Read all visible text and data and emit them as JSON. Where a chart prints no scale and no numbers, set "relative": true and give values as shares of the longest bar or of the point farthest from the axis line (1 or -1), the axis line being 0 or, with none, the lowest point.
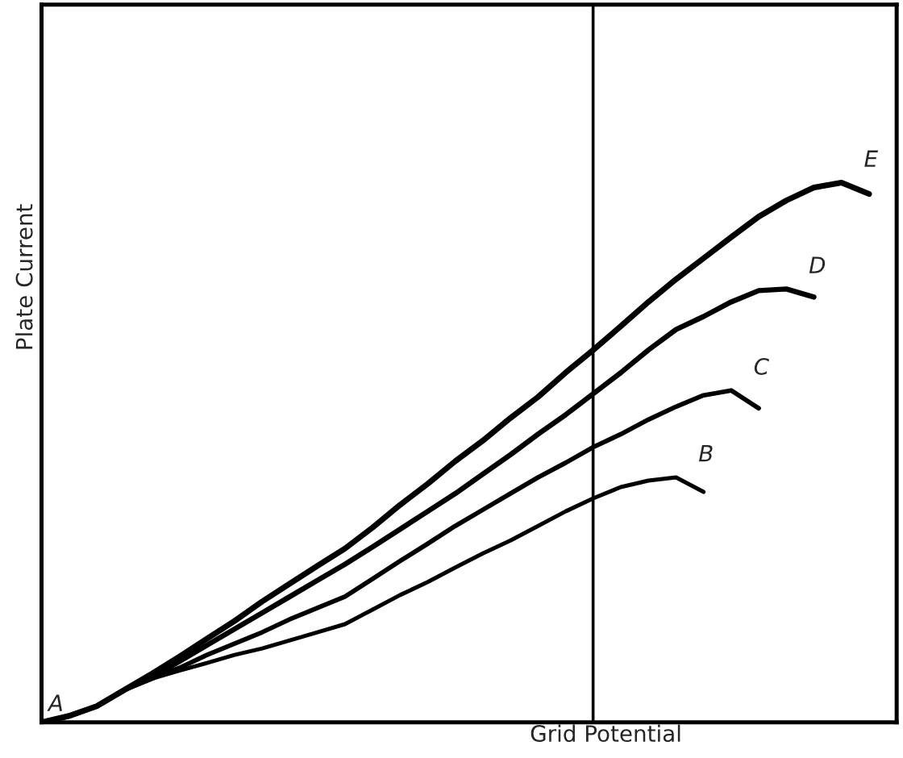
{
  "chart_data": {
    "type": "line",
    "relative": true,
    "xlabel": "Grid Potential",
    "ylabel": "Plate Current",
    "categories": [
      null,
      null,
      null,
      null,
      null,
      null,
      null,
      null,
      null,
      null,
      null,
      null,
      null,
      null,
      null,
      null,
      null,
      null,
      null,
      null,
      null,
      null,
      null,
      null,
      null,
      null,
      null,
      null,
      null,
      null,
      null,
      null
    ],
    "series": [
      {
        "name": "B",
        "color": "#000000",
        "values": [
          0,
          0.012,
          0.03,
          0.06,
          0.081,
          0.096,
          0.11,
          0.125,
          0.137,
          0.152,
          0.167,
          0.182,
          0.209,
          0.236,
          0.26,
          0.287,
          0.313,
          0.337,
          0.364,
          0.391,
          0.415,
          0.436,
          0.448,
          0.454,
          0.427,
          null,
          null,
          null,
          null,
          null,
          null,
          null
        ]
      },
      {
        "name": "C",
        "color": "#000000",
        "values": [
          0,
          0.012,
          0.03,
          0.06,
          0.081,
          0.101,
          0.125,
          0.146,
          0.167,
          0.191,
          0.212,
          0.233,
          0.266,
          0.299,
          0.331,
          0.364,
          0.394,
          0.424,
          0.454,
          0.481,
          0.51,
          0.534,
          0.561,
          0.585,
          0.606,
          0.615,
          0.582,
          null,
          null,
          null,
          null,
          null
        ]
      },
      {
        "name": "D",
        "color": "#000000",
        "values": [
          0,
          0.012,
          0.03,
          0.06,
          0.084,
          0.113,
          0.143,
          0.173,
          0.203,
          0.233,
          0.263,
          0.293,
          0.325,
          0.358,
          0.391,
          0.424,
          0.46,
          0.496,
          0.534,
          0.57,
          0.609,
          0.648,
          0.69,
          0.728,
          0.752,
          0.779,
          0.8,
          0.803,
          0.788,
          null,
          null,
          null
        ]
      },
      {
        "name": "E",
        "color": "#000000",
        "values": [
          0,
          0.012,
          0.03,
          0.06,
          0.09,
          0.122,
          0.155,
          0.188,
          0.224,
          0.257,
          0.29,
          0.322,
          0.361,
          0.403,
          0.442,
          0.484,
          0.522,
          0.564,
          0.603,
          0.648,
          0.69,
          0.734,
          0.779,
          0.821,
          0.86,
          0.899,
          0.937,
          0.967,
          0.991,
          1.0,
          0.979,
          null
        ]
      }
    ],
    "annotations": [
      "A"
    ],
    "legend": false,
    "marker": "none",
    "line_style": "solid",
    "tick_labels": false
  }
}
